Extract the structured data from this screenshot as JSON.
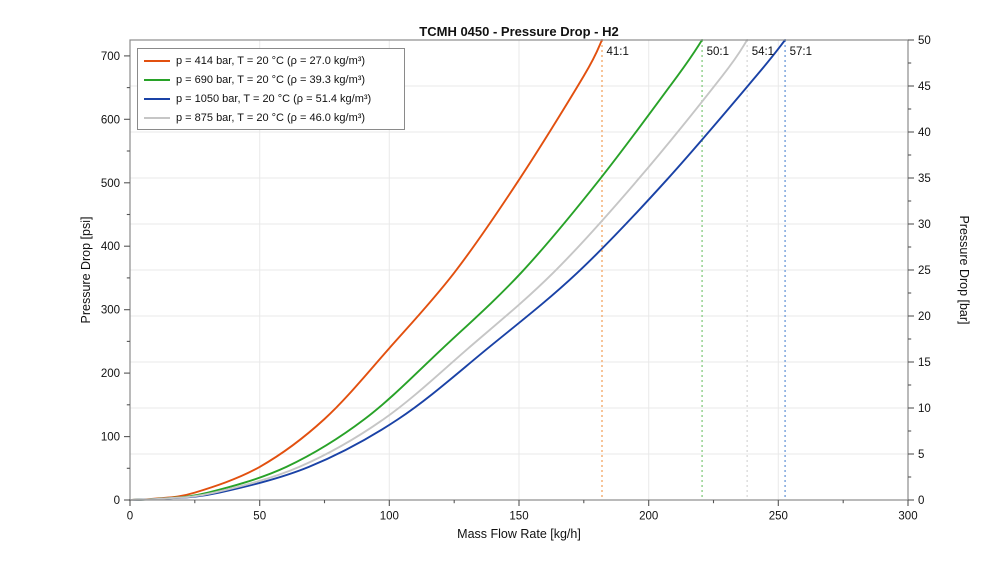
{
  "chart_data": {
    "type": "line",
    "title": "TCMH 0450 - Pressure Drop - H2",
    "xlabel": "Mass Flow Rate [kg/h]",
    "ylabel_left": "Pressure Drop [psi]",
    "ylabel_right": "Pressure Drop [bar]",
    "xlim": [
      0,
      300
    ],
    "ylim_left_psi": [
      0,
      725
    ],
    "ylim_right_bar": [
      0,
      50
    ],
    "x_major_ticks": [
      0,
      50,
      100,
      150,
      200,
      250,
      300
    ],
    "x_minor_ticks": [
      25,
      75,
      125,
      175,
      225,
      275
    ],
    "left_major_ticks_psi": [
      0,
      100,
      200,
      300,
      400,
      500,
      600,
      700
    ],
    "left_minor_ticks_psi": [
      50,
      150,
      250,
      350,
      450,
      550,
      650
    ],
    "right_major_ticks_bar": [
      0,
      5,
      10,
      15,
      20,
      25,
      30,
      35,
      40,
      45,
      50
    ],
    "right_minor_ticks_bar": [
      2.5,
      7.5,
      12.5,
      17.5,
      22.5,
      27.5,
      32.5,
      37.5,
      42.5,
      47.5
    ],
    "grid": {
      "horizontal_every_bar": 5,
      "vertical_every_kgh": 50,
      "color": "#e9e9e9"
    },
    "frame_color": "#8c8c8c",
    "tick_color": "#555555",
    "text_color": "#111111",
    "legend_position": "top-left",
    "series": [
      {
        "id": "p414",
        "label": "p = 414 bar, T = 20 °C (ρ = 27.0 kg/m³)",
        "color": "#e2500f",
        "marker_color": "#f5b57f",
        "pressure_bar": 414,
        "temperature_c": 20,
        "density_kg_m3": 27.0,
        "ratio_label": "41:1",
        "flow_at_50bar_kgh": 182,
        "points_kgh_bar": [
          [
            0,
            0
          ],
          [
            10,
            0.15
          ],
          [
            25,
            0.8
          ],
          [
            50,
            3.6
          ],
          [
            75,
            8.8
          ],
          [
            100,
            16.5
          ],
          [
            125,
            24.7
          ],
          [
            150,
            34.8
          ],
          [
            175,
            46.1
          ],
          [
            182,
            50
          ]
        ]
      },
      {
        "id": "p690",
        "label": "p = 690 bar, T = 20 °C (ρ = 39.3 kg/m³)",
        "color": "#28a228",
        "marker_color": "#9bd496",
        "pressure_bar": 690,
        "temperature_c": 20,
        "density_kg_m3": 39.3,
        "ratio_label": "50:1",
        "flow_at_50bar_kgh": 220.6,
        "points_kgh_bar": [
          [
            0,
            0
          ],
          [
            12.1,
            0.15
          ],
          [
            30.2,
            0.8
          ],
          [
            60.3,
            3.6
          ],
          [
            90.5,
            8.8
          ],
          [
            120.6,
            16.5
          ],
          [
            150.8,
            24.7
          ],
          [
            181,
            34.8
          ],
          [
            211.1,
            46.1
          ],
          [
            220.6,
            50
          ]
        ]
      },
      {
        "id": "p1050",
        "label": "p = 1050 bar, T = 20 °C (ρ = 51.4 kg/m³)",
        "color": "#1a42a6",
        "marker_color": "#86abdf",
        "pressure_bar": 1050,
        "temperature_c": 20,
        "density_kg_m3": 51.4,
        "ratio_label": "57:1",
        "flow_at_50bar_kgh": 252.6,
        "points_kgh_bar": [
          [
            0,
            0
          ],
          [
            13.8,
            0.15
          ],
          [
            34.5,
            0.8
          ],
          [
            69,
            3.6
          ],
          [
            103.5,
            8.8
          ],
          [
            138,
            16.5
          ],
          [
            172.5,
            24.7
          ],
          [
            207,
            34.8
          ],
          [
            241.5,
            46.1
          ],
          [
            252.6,
            50
          ]
        ]
      },
      {
        "id": "p875",
        "label": "p = 875 bar, T = 20 °C (ρ = 46.0 kg/m³)",
        "color": "#c6c6c6",
        "marker_color": "#e0e0e0",
        "pressure_bar": 875,
        "temperature_c": 20,
        "density_kg_m3": 46.0,
        "ratio_label": "54:1",
        "flow_at_50bar_kgh": 238,
        "points_kgh_bar": [
          [
            0,
            0
          ],
          [
            13.1,
            0.15
          ],
          [
            32.6,
            0.8
          ],
          [
            65.3,
            3.6
          ],
          [
            97.9,
            8.8
          ],
          [
            130.5,
            16.5
          ],
          [
            163.2,
            24.7
          ],
          [
            195.8,
            34.8
          ],
          [
            228.4,
            46.1
          ],
          [
            238,
            50
          ]
        ]
      }
    ]
  }
}
